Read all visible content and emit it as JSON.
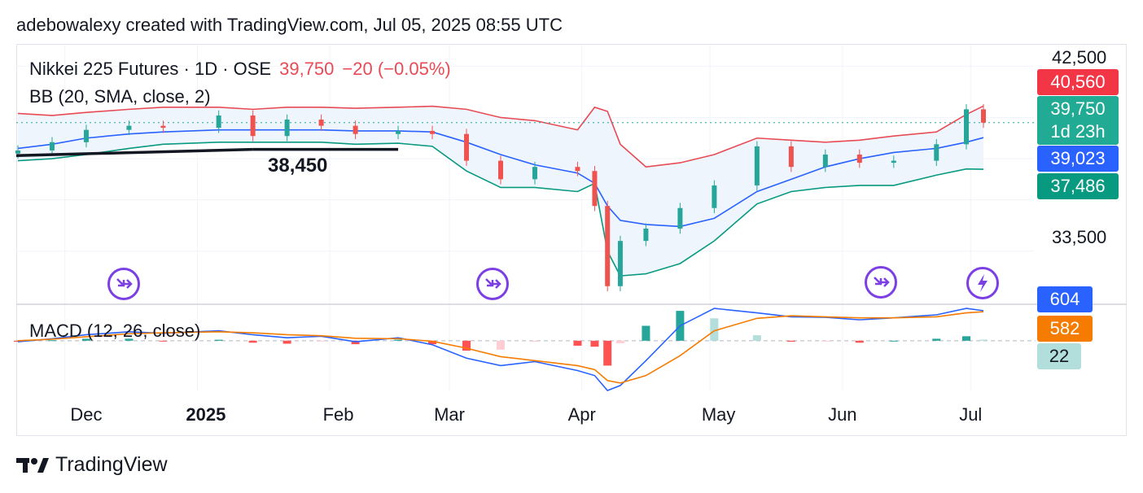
{
  "header": {
    "text": "adebowalexy created with TradingView.com, Jul 05, 2025 08:55 UTC"
  },
  "legend": {
    "symbol": "Nikkei 225 Futures · 1D · OSE",
    "price": "39,750",
    "change": "−20 (−0.05%)",
    "bb": "BB (20, SMA, close, 2)",
    "macd": "MACD (12, 26, close)"
  },
  "price_scale": {
    "ticks": [
      "42,500",
      "33,500"
    ],
    "tags": {
      "upper": "40,560",
      "last": "39,750",
      "countdown": "1d 23h",
      "basis": "39,023",
      "lower": "37,486"
    }
  },
  "macd_scale": {
    "tags": {
      "macd": "604",
      "signal": "582",
      "hist": "22"
    }
  },
  "annotation": {
    "text": "38,450"
  },
  "time_axis": [
    {
      "label": "Dec",
      "bold": false
    },
    {
      "label": "2025",
      "bold": true
    },
    {
      "label": "Feb",
      "bold": false
    },
    {
      "label": "Mar",
      "bold": false
    },
    {
      "label": "Apr",
      "bold": false
    },
    {
      "label": "May",
      "bold": false
    },
    {
      "label": "Jun",
      "bold": false
    },
    {
      "label": "Jul",
      "bold": false
    }
  ],
  "footer": {
    "brand": "TradingView"
  },
  "colors": {
    "up": "#26a69a",
    "down": "#ef5350",
    "bb_upper": "#e84b55",
    "bb_basis": "#2962ff",
    "bb_lower": "#089981",
    "bb_fill": "#eef5fd",
    "macd_line": "#2962ff",
    "signal_line": "#f57c00",
    "event": "#7b3fe4"
  },
  "chart_data": {
    "type": "candlestick",
    "title": "Nikkei 225 Futures · 1D · OSE",
    "ylim": [
      31000,
      43500
    ],
    "x": [
      "2024-11-20",
      "2024-11-28",
      "2024-12-06",
      "2024-12-16",
      "2024-12-24",
      "2025-01-06",
      "2025-01-14",
      "2025-01-22",
      "2025-01-30",
      "2025-02-07",
      "2025-02-17",
      "2025-02-25",
      "2025-03-05",
      "2025-03-13",
      "2025-03-21",
      "2025-03-31",
      "2025-04-04",
      "2025-04-07",
      "2025-04-10",
      "2025-04-16",
      "2025-04-24",
      "2025-05-02",
      "2025-05-12",
      "2025-05-20",
      "2025-05-28",
      "2025-06-05",
      "2025-06-13",
      "2025-06-23",
      "2025-06-30",
      "2025-07-04"
    ],
    "close": [
      38400,
      38800,
      39400,
      39600,
      39500,
      40100,
      39100,
      39900,
      39600,
      39200,
      39350,
      39200,
      37900,
      37000,
      37600,
      37400,
      35700,
      31800,
      34000,
      34600,
      35600,
      36700,
      38600,
      37600,
      38200,
      37800,
      37900,
      38700,
      40400,
      39750
    ],
    "bb_upper": [
      40200,
      40100,
      40250,
      40400,
      40500,
      40500,
      40400,
      40500,
      40500,
      40450,
      40500,
      40550,
      40400,
      40000,
      39850,
      39400,
      40500,
      40300,
      38700,
      37600,
      37800,
      38200,
      39000,
      38900,
      38800,
      38900,
      39100,
      39300,
      40150,
      40560
    ],
    "bb_basis": [
      38500,
      38700,
      39000,
      39200,
      39300,
      39400,
      39400,
      39400,
      39400,
      39350,
      39350,
      39300,
      38800,
      38200,
      37700,
      37300,
      36800,
      35700,
      35000,
      34800,
      34700,
      35100,
      36400,
      37000,
      37600,
      38000,
      38300,
      38500,
      38800,
      39023
    ],
    "bb_lower": [
      37900,
      38000,
      38200,
      38500,
      38700,
      38800,
      38800,
      38800,
      38800,
      38700,
      38750,
      38600,
      37400,
      36600,
      36600,
      36400,
      36800,
      33500,
      32300,
      32400,
      32900,
      34000,
      35800,
      36400,
      36600,
      36700,
      36700,
      37200,
      37500,
      37486
    ],
    "macd": {
      "macd": [
        -20,
        40,
        120,
        180,
        150,
        200,
        120,
        60,
        90,
        -20,
        60,
        -80,
        -350,
        -500,
        -420,
        -600,
        -700,
        -1300,
        -900,
        -400,
        300,
        650,
        560,
        480,
        470,
        420,
        460,
        520,
        650,
        604
      ],
      "signal": [
        0,
        30,
        80,
        140,
        160,
        180,
        160,
        120,
        100,
        50,
        40,
        -10,
        -150,
        -320,
        -400,
        -500,
        -580,
        -800,
        -850,
        -700,
        -300,
        200,
        450,
        500,
        480,
        460,
        460,
        480,
        560,
        582
      ],
      "hist": [
        -20,
        10,
        40,
        40,
        -10,
        20,
        -40,
        -60,
        -10,
        -70,
        20,
        -70,
        -200,
        -180,
        -20,
        -100,
        -120,
        -500,
        -50,
        300,
        600,
        450,
        110,
        -20,
        -10,
        -40,
        0,
        40,
        90,
        22
      ],
      "ylim": [
        -1000,
        700
      ]
    },
    "annotations": [
      {
        "label": "38,450",
        "y": 38450
      }
    ]
  }
}
